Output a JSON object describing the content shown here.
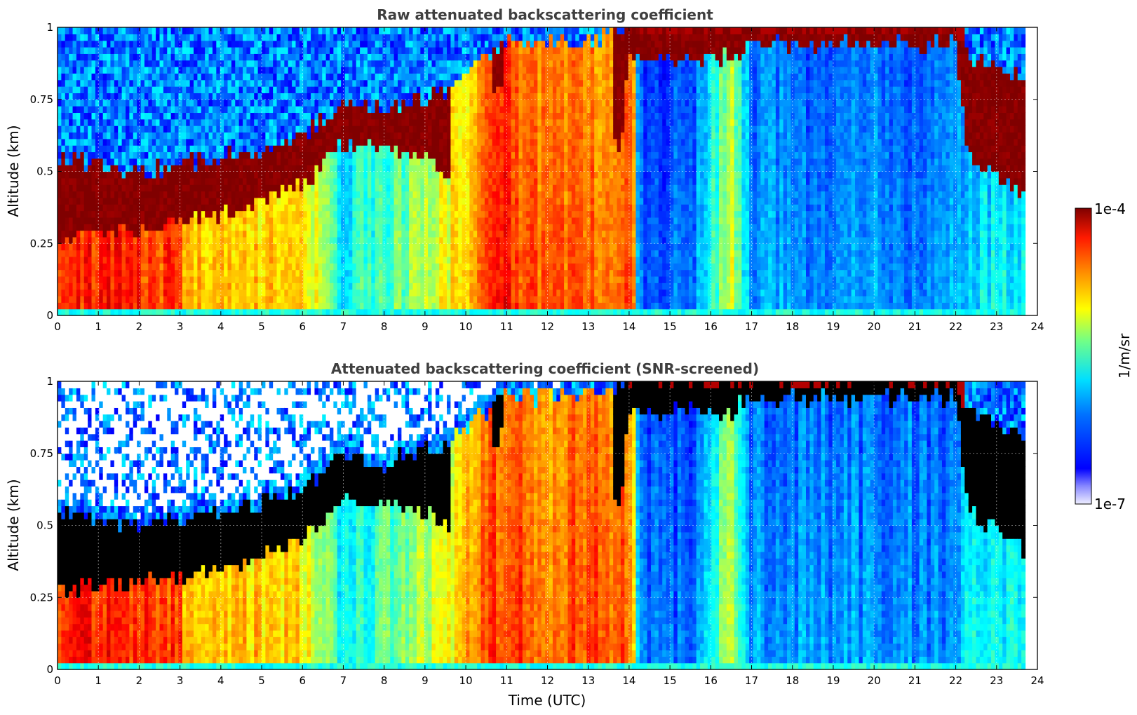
{
  "chart_data": [
    {
      "type": "heatmap",
      "title": "Raw attenuated backscattering coefficient",
      "xlabel": "",
      "ylabel": "Altitude (km)",
      "xlim": [
        0,
        24
      ],
      "ylim": [
        0,
        1
      ],
      "x_ticks": [
        "0",
        "1",
        "2",
        "3",
        "4",
        "5",
        "6",
        "7",
        "8",
        "9",
        "10",
        "11",
        "12",
        "13",
        "14",
        "15",
        "16",
        "17",
        "18",
        "19",
        "20",
        "21",
        "22",
        "23",
        "24"
      ],
      "y_ticks": [
        "0",
        "0.25",
        "0.5",
        "0.75",
        "1"
      ],
      "grid": true,
      "data_end_time": 23.7,
      "colorscale": "jet",
      "cbar_range": [
        "1e-7",
        "1e-4"
      ],
      "screened": false,
      "regimes": [
        {
          "t0": 0.0,
          "t1": 3.0,
          "near_surface": "red",
          "layer_top_km": 0.52,
          "layer_base_km": 0.28,
          "aloft": "noisy-blue"
        },
        {
          "t0": 3.0,
          "t1": 6.0,
          "near_surface": "orange-yellow",
          "layer_top_km": 0.6,
          "layer_base_km": 0.35,
          "aloft": "noisy-blue"
        },
        {
          "t0": 6.0,
          "t1": 9.5,
          "near_surface": "green-cyan",
          "layer_top_km": 0.75,
          "layer_base_km": 0.55,
          "aloft": "noisy-blue"
        },
        {
          "t0": 9.5,
          "t1": 14.2,
          "near_surface": "orange",
          "layer_top_km": 0.9,
          "layer_base_km": 0.5,
          "aloft": "dark-red"
        },
        {
          "t0": 14.2,
          "t1": 16.5,
          "near_surface": "blue",
          "layer_top_km": 1.0,
          "layer_base_km": 0.9,
          "aloft": "dark-red"
        },
        {
          "t0": 16.5,
          "t1": 22.2,
          "near_surface": "blue",
          "layer_top_km": 1.0,
          "layer_base_km": 0.9,
          "aloft": "dark-red"
        },
        {
          "t0": 22.2,
          "t1": 23.7,
          "near_surface": "cyan",
          "layer_top_km": 0.85,
          "layer_base_km": 0.4,
          "aloft": "noisy-blue"
        }
      ]
    },
    {
      "type": "heatmap",
      "title": "Attenuated backscattering coefficient (SNR-screened)",
      "xlabel": "Time (UTC)",
      "ylabel": "Altitude (km)",
      "xlim": [
        0,
        24
      ],
      "ylim": [
        0,
        1
      ],
      "x_ticks": [
        "0",
        "1",
        "2",
        "3",
        "4",
        "5",
        "6",
        "7",
        "8",
        "9",
        "10",
        "11",
        "12",
        "13",
        "14",
        "15",
        "16",
        "17",
        "18",
        "19",
        "20",
        "21",
        "22",
        "23",
        "24"
      ],
      "y_ticks": [
        "0",
        "0.25",
        "0.5",
        "0.75",
        "1"
      ],
      "grid": true,
      "data_end_time": 23.7,
      "colorscale": "jet",
      "cbar_range": [
        "1e-7",
        "1e-4"
      ],
      "screened": true,
      "saturated_color": "black"
    }
  ],
  "colorbar": {
    "max_label": "1e-4",
    "min_label": "1e-7",
    "unit_label": "1/m/sr"
  },
  "colors": {
    "jet_dark_red": "#7f0000",
    "jet_red": "#ff2000",
    "jet_yellow": "#ffff00",
    "jet_cyan": "#00e0ff",
    "jet_blue": "#0050ff",
    "jet_dark_blue": "#0000ff",
    "title_gray": "#3f3f3f"
  }
}
